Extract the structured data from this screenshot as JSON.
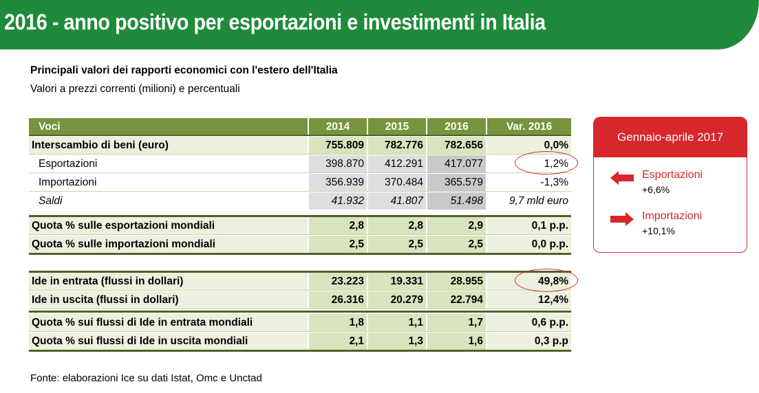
{
  "header": {
    "title": "2016 - anno positivo per esportazioni e investimenti in Italia"
  },
  "table": {
    "title": "Principali valori dei rapporti economici con l'estero dell'Italia",
    "subtitle": "Valori a prezzi correnti (milioni) e percentuali",
    "columns": [
      "Voci",
      "2014",
      "2015",
      "2016",
      "Var. 2016"
    ],
    "rows": [
      [
        "Interscambio di beni (euro)",
        "755.809",
        "782.776",
        "782.656",
        "0,0%"
      ],
      [
        "Esportazioni",
        "398.870",
        "412.291",
        "417.077",
        "1,2%"
      ],
      [
        "Importazioni",
        "356.939",
        "370.484",
        "365.579",
        "-1,3%"
      ],
      [
        "Saldi",
        "41.932",
        "41.807",
        "51.498",
        "9,7 mld euro"
      ],
      [
        "Quota % sulle esportazioni mondiali",
        "2,8",
        "2,8",
        "2,9",
        "0,1 p.p."
      ],
      [
        "Quota % sulle importazioni mondiali",
        "2,5",
        "2,5",
        "2,5",
        "0,0 p.p."
      ],
      [
        "Ide in entrata (flussi in dollari)",
        "23.223",
        "19.331",
        "28.955",
        "49,8%"
      ],
      [
        "Ide in uscita (flussi in dollari)",
        "26.316",
        "20.279",
        "22.794",
        "12,4%"
      ],
      [
        "Quota % sui flussi di Ide in entrata mondiali",
        "1,8",
        "1,1",
        "1,7",
        "0,6 p.p."
      ],
      [
        "Quota % sui flussi di Ide in uscita mondiali",
        "2,1",
        "1,3",
        "1,6",
        "0,3 p.p"
      ]
    ],
    "source": "Fonte: elaborazioni Ice su dati Istat, Omc e Unctad"
  },
  "sidebox": {
    "title": "Gennaio-aprile 2017",
    "items": [
      {
        "label": "Esportazioni",
        "value": "+6,6%"
      },
      {
        "label": "Importazioni",
        "value": "+10,1%"
      }
    ]
  }
}
